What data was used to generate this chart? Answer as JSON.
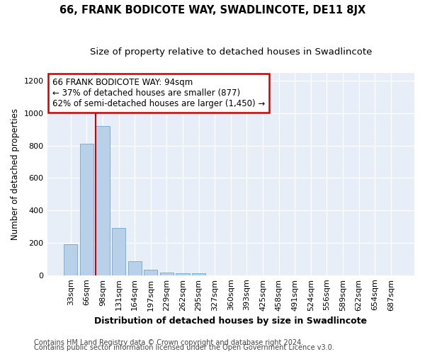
{
  "title1": "66, FRANK BODICOTE WAY, SWADLINCOTE, DE11 8JX",
  "title2": "Size of property relative to detached houses in Swadlincote",
  "xlabel": "Distribution of detached houses by size in Swadlincote",
  "ylabel": "Number of detached properties",
  "categories": [
    "33sqm",
    "66sqm",
    "98sqm",
    "131sqm",
    "164sqm",
    "197sqm",
    "229sqm",
    "262sqm",
    "295sqm",
    "327sqm",
    "360sqm",
    "393sqm",
    "425sqm",
    "458sqm",
    "491sqm",
    "524sqm",
    "556sqm",
    "589sqm",
    "622sqm",
    "654sqm",
    "687sqm"
  ],
  "values": [
    192,
    810,
    922,
    290,
    88,
    35,
    18,
    13,
    10,
    0,
    0,
    0,
    0,
    0,
    0,
    0,
    0,
    0,
    0,
    0,
    0
  ],
  "bar_color": "#b8d0e8",
  "bar_edge_color": "#7aafd4",
  "vline_color": "#cc0000",
  "annotation_text": "66 FRANK BODICOTE WAY: 94sqm\n← 37% of detached houses are smaller (877)\n62% of semi-detached houses are larger (1,450) →",
  "annotation_box_color": "#ffffff",
  "annotation_box_edge": "#cc0000",
  "ylim": [
    0,
    1250
  ],
  "yticks": [
    0,
    200,
    400,
    600,
    800,
    1000,
    1200
  ],
  "bg_color": "#e8eef8",
  "footer1": "Contains HM Land Registry data © Crown copyright and database right 2024.",
  "footer2": "Contains public sector information licensed under the Open Government Licence v3.0.",
  "title1_fontsize": 10.5,
  "title2_fontsize": 9.5,
  "xlabel_fontsize": 9,
  "ylabel_fontsize": 8.5,
  "tick_fontsize": 8,
  "annotation_fontsize": 8.5,
  "footer_fontsize": 7
}
